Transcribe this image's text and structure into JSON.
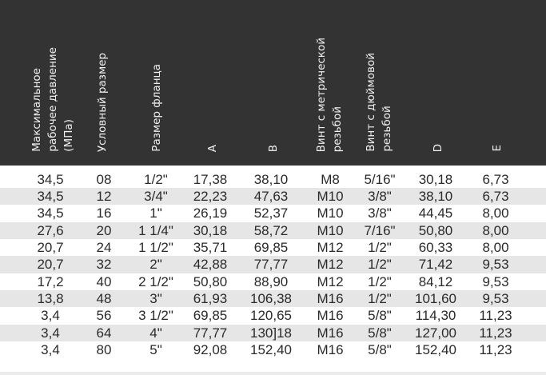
{
  "table": {
    "headers": [
      "Максимальное\nрабочее давление\n(МПа)",
      "Условный размер",
      "Размер фланца",
      "A",
      "B",
      "Винт с метрической\nрезьбой",
      "Винт с дюймовой\nрезьбой",
      "D",
      "E"
    ],
    "rows": [
      [
        "34,5",
        "08",
        "1/2\"",
        "17,38",
        "38,10",
        "M8",
        "5/16\"",
        "30,18",
        "6,73"
      ],
      [
        "34,5",
        "12",
        "3/4\"",
        "22,23",
        "47,63",
        "M10",
        "3/8\"",
        "38,10",
        "6,73"
      ],
      [
        "34,5",
        "16",
        "1\"",
        "26,19",
        "52,37",
        "M10",
        "3/8\"",
        "44,45",
        "8,00"
      ],
      [
        "27,6",
        "20",
        "1 1/4\"",
        "30,18",
        "58,72",
        "M10",
        "7/16\"",
        "50,80",
        "8,00"
      ],
      [
        "20,7",
        "24",
        "1 1/2\"",
        "35,71",
        "69,85",
        "M12",
        "1/2\"",
        "60,33",
        "8,00"
      ],
      [
        "20,7",
        "32",
        "2\"",
        "42,88",
        "77,77",
        "M12",
        "1/2\"",
        "71,42",
        "9,53"
      ],
      [
        "17,2",
        "40",
        "2 1/2\"",
        "50,80",
        "88,90",
        "M12",
        "1/2\"",
        "84,12",
        "9,53"
      ],
      [
        "13,8",
        "48",
        "3\"",
        "61,93",
        "106,38",
        "M16",
        "1/2\"",
        "101,60",
        "9,53"
      ],
      [
        "3,4",
        "56",
        "3 1/2\"",
        "69,85",
        "120,65",
        "M16",
        "5/8\"",
        "114,30",
        "11,23"
      ],
      [
        "3,4",
        "64",
        "4\"",
        "77,77",
        "130]18",
        "M16",
        "5/8\"",
        "127,00",
        "11,23"
      ],
      [
        "3,4",
        "80",
        "5\"",
        "92,08",
        "152,40",
        "M16",
        "5/8\"",
        "152,40",
        "11,23"
      ]
    ]
  },
  "colors": {
    "header_bg": "#333333",
    "header_text": "#f2f2f2",
    "stripe": "#e6e6e6"
  }
}
